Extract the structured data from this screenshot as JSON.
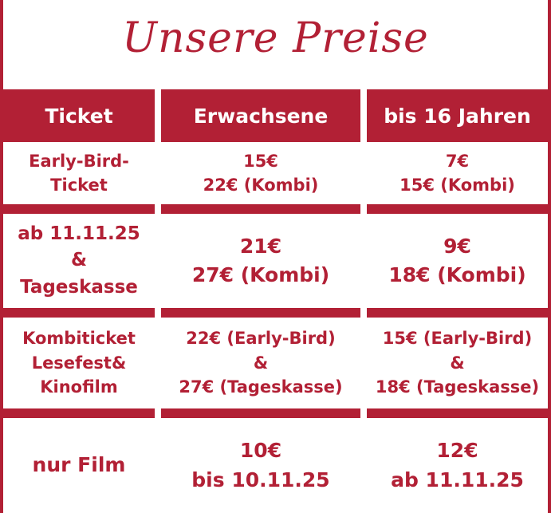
{
  "title": "Unsere Preise",
  "colors": {
    "accent": "#b22035",
    "background": "#ffffff"
  },
  "headers": [
    "Ticket",
    "Erwachsene",
    "bis 16 Jahren"
  ],
  "rows": [
    {
      "ticket": [
        "Early-Bird-",
        "Ticket"
      ],
      "adult": [
        "15€",
        "22€ (Kombi)"
      ],
      "youth": [
        "7€",
        "15€ (Kombi)"
      ]
    },
    {
      "ticket": [
        "ab 11.11.25",
        "&",
        "Tageskasse"
      ],
      "adult": [
        "21€",
        "27€ (Kombi)"
      ],
      "youth": [
        "9€",
        "18€ (Kombi)"
      ]
    },
    {
      "ticket": [
        "Kombiticket",
        "Lesefest&",
        "Kinofilm"
      ],
      "adult": [
        "22€ (Early-Bird)",
        "&",
        "27€ (Tageskasse)"
      ],
      "youth": [
        "15€ (Early-Bird)",
        "&",
        "18€ (Tageskasse)"
      ]
    },
    {
      "ticket": [
        "nur Film"
      ],
      "adult": [
        "10€",
        "bis 10.11.25"
      ],
      "youth": [
        "12€",
        "ab 11.11.25"
      ]
    }
  ]
}
